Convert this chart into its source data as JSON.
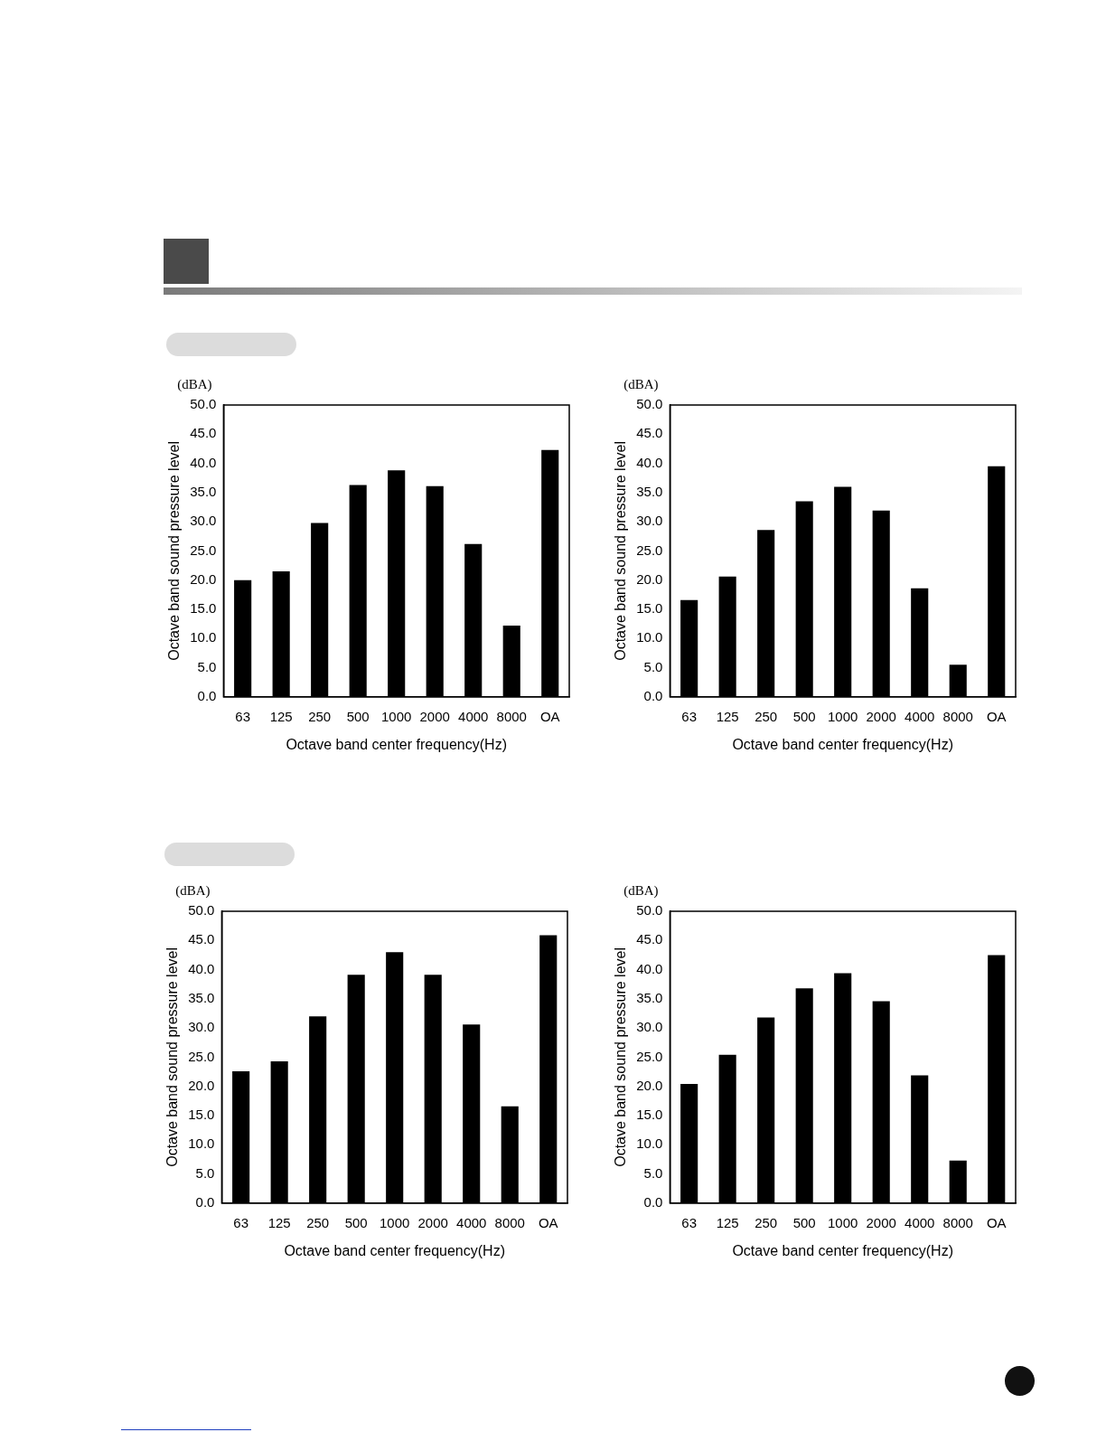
{
  "chart_data": [
    {
      "type": "bar",
      "categories": [
        "63",
        "125",
        "250",
        "500",
        "1000",
        "2000",
        "4000",
        "8000",
        "OA"
      ],
      "values": [
        20.0,
        21.5,
        29.8,
        36.3,
        38.8,
        36.1,
        26.2,
        12.2,
        42.3
      ],
      "color": "#000000",
      "xlabel": "Octave band center frequency(Hz)",
      "ylabel": "Octave band sound pressure level",
      "annotations": [
        "(dBA)"
      ],
      "ylim": [
        0,
        50
      ],
      "yticks": [
        {
          "value": 0,
          "label": "0.0"
        },
        {
          "value": 5,
          "label": "5.0"
        },
        {
          "value": 10,
          "label": "10.0"
        },
        {
          "value": 15,
          "label": "15.0"
        },
        {
          "value": 20,
          "label": "20.0"
        },
        {
          "value": 25,
          "label": "25.0"
        },
        {
          "value": 30,
          "label": "30.0"
        },
        {
          "value": 35,
          "label": "35.0"
        },
        {
          "value": 40,
          "label": "40.0"
        },
        {
          "value": 45,
          "label": "45.0"
        },
        {
          "value": 50,
          "label": "50.0"
        }
      ],
      "grid": false,
      "legend": false
    },
    {
      "type": "bar",
      "categories": [
        "63",
        "125",
        "250",
        "500",
        "1000",
        "2000",
        "4000",
        "8000",
        "OA"
      ],
      "values": [
        16.6,
        20.6,
        28.6,
        33.5,
        36.0,
        31.9,
        18.6,
        5.5,
        39.5
      ],
      "color": "#000000",
      "xlabel": "Octave band center frequency(Hz)",
      "ylabel": "Octave band sound pressure level",
      "annotations": [
        "(dBA)"
      ],
      "ylim": [
        0,
        50
      ],
      "yticks": [
        {
          "value": 0,
          "label": "0.0"
        },
        {
          "value": 5,
          "label": "5.0"
        },
        {
          "value": 10,
          "label": "10.0"
        },
        {
          "value": 15,
          "label": "15.0"
        },
        {
          "value": 20,
          "label": "20.0"
        },
        {
          "value": 25,
          "label": "25.0"
        },
        {
          "value": 30,
          "label": "30.0"
        },
        {
          "value": 35,
          "label": "35.0"
        },
        {
          "value": 40,
          "label": "40.0"
        },
        {
          "value": 45,
          "label": "45.0"
        },
        {
          "value": 50,
          "label": "50.0"
        }
      ],
      "grid": false,
      "legend": false
    },
    {
      "type": "bar",
      "categories": [
        "63",
        "125",
        "250",
        "500",
        "1000",
        "2000",
        "4000",
        "8000",
        "OA"
      ],
      "values": [
        22.6,
        24.3,
        32.0,
        39.1,
        43.0,
        39.1,
        30.6,
        16.6,
        45.9
      ],
      "color": "#000000",
      "xlabel": "Octave band center frequency(Hz)",
      "ylabel": "Octave band sound pressure level",
      "annotations": [
        "(dBA)"
      ],
      "ylim": [
        0,
        50
      ],
      "yticks": [
        {
          "value": 0,
          "label": "0.0"
        },
        {
          "value": 5,
          "label": "5.0"
        },
        {
          "value": 10,
          "label": "10.0"
        },
        {
          "value": 15,
          "label": "15.0"
        },
        {
          "value": 20,
          "label": "20.0"
        },
        {
          "value": 25,
          "label": "25.0"
        },
        {
          "value": 30,
          "label": "30.0"
        },
        {
          "value": 35,
          "label": "35.0"
        },
        {
          "value": 40,
          "label": "40.0"
        },
        {
          "value": 45,
          "label": "45.0"
        },
        {
          "value": 50,
          "label": "50.0"
        }
      ],
      "grid": false,
      "legend": false
    },
    {
      "type": "bar",
      "categories": [
        "63",
        "125",
        "250",
        "500",
        "1000",
        "2000",
        "4000",
        "8000",
        "OA"
      ],
      "values": [
        20.4,
        25.4,
        31.8,
        36.8,
        39.4,
        34.6,
        21.9,
        7.3,
        42.5
      ],
      "color": "#000000",
      "xlabel": "Octave band center frequency(Hz)",
      "ylabel": "Octave band sound pressure level",
      "annotations": [
        "(dBA)"
      ],
      "ylim": [
        0,
        50
      ],
      "yticks": [
        {
          "value": 0,
          "label": "0.0"
        },
        {
          "value": 5,
          "label": "5.0"
        },
        {
          "value": 10,
          "label": "10.0"
        },
        {
          "value": 15,
          "label": "15.0"
        },
        {
          "value": 20,
          "label": "20.0"
        },
        {
          "value": 25,
          "label": "25.0"
        },
        {
          "value": 30,
          "label": "30.0"
        },
        {
          "value": 35,
          "label": "35.0"
        },
        {
          "value": 40,
          "label": "40.0"
        },
        {
          "value": 45,
          "label": "45.0"
        },
        {
          "value": 50,
          "label": "50.0"
        }
      ],
      "grid": false,
      "legend": false
    }
  ]
}
